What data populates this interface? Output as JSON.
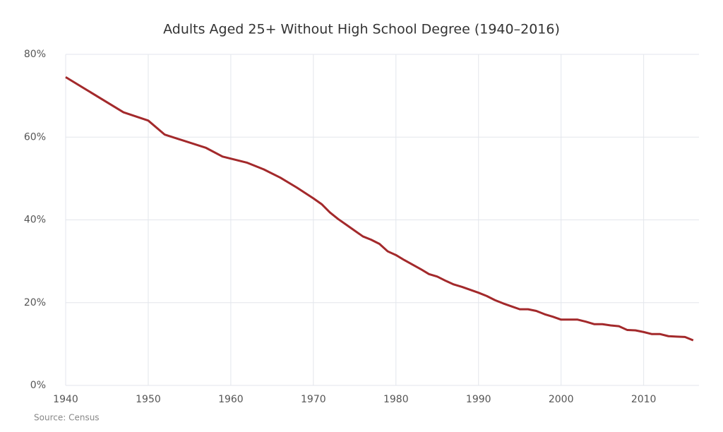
{
  "chart_data": {
    "type": "line",
    "title": "Adults Aged 25+ Without High School Degree (1940–2016)",
    "source": "Source: Census",
    "x": [
      1940,
      1947,
      1950,
      1952,
      1957,
      1959,
      1962,
      1964,
      1966,
      1968,
      1969,
      1970,
      1971,
      1972,
      1973,
      1974,
      1975,
      1976,
      1977,
      1978,
      1979,
      1980,
      1981,
      1982,
      1983,
      1984,
      1985,
      1986,
      1987,
      1988,
      1989,
      1990,
      1991,
      1992,
      1993,
      1994,
      1995,
      1996,
      1997,
      1998,
      1999,
      2000,
      2001,
      2002,
      2003,
      2004,
      2005,
      2006,
      2007,
      2008,
      2009,
      2010,
      2011,
      2012,
      2013,
      2014,
      2015,
      2016
    ],
    "series": [
      {
        "color": "#a3292b",
        "values": [
          74.5,
          66,
          64,
          60.6,
          57.4,
          55.3,
          53.8,
          52.2,
          50.2,
          47.8,
          46.5,
          45.2,
          43.8,
          41.8,
          40.2,
          38.8,
          37.4,
          36.0,
          35.2,
          34.2,
          32.4,
          31.5,
          30.3,
          29.2,
          28.1,
          26.9,
          26.3,
          25.3,
          24.4,
          23.8,
          23.1,
          22.4,
          21.6,
          20.6,
          19.8,
          19.1,
          18.4,
          18.4,
          18.0,
          17.2,
          16.6,
          15.9,
          15.9,
          15.9,
          15.4,
          14.8,
          14.8,
          14.5,
          14.3,
          13.4,
          13.3,
          12.9,
          12.4,
          12.4,
          11.9,
          11.8,
          11.7,
          10.9
        ]
      }
    ],
    "xlim": [
      1940,
      2016.7
    ],
    "xticks": [
      1940,
      1950,
      1960,
      1970,
      1980,
      1990,
      2000,
      2010
    ],
    "ylim": [
      0,
      80
    ],
    "yticks": [
      {
        "value": 0,
        "label": "0%"
      },
      {
        "value": 20,
        "label": "20%"
      },
      {
        "value": 40,
        "label": "40%"
      },
      {
        "value": 60,
        "label": "60%"
      },
      {
        "value": 80,
        "label": "80%"
      }
    ],
    "grid": true
  }
}
